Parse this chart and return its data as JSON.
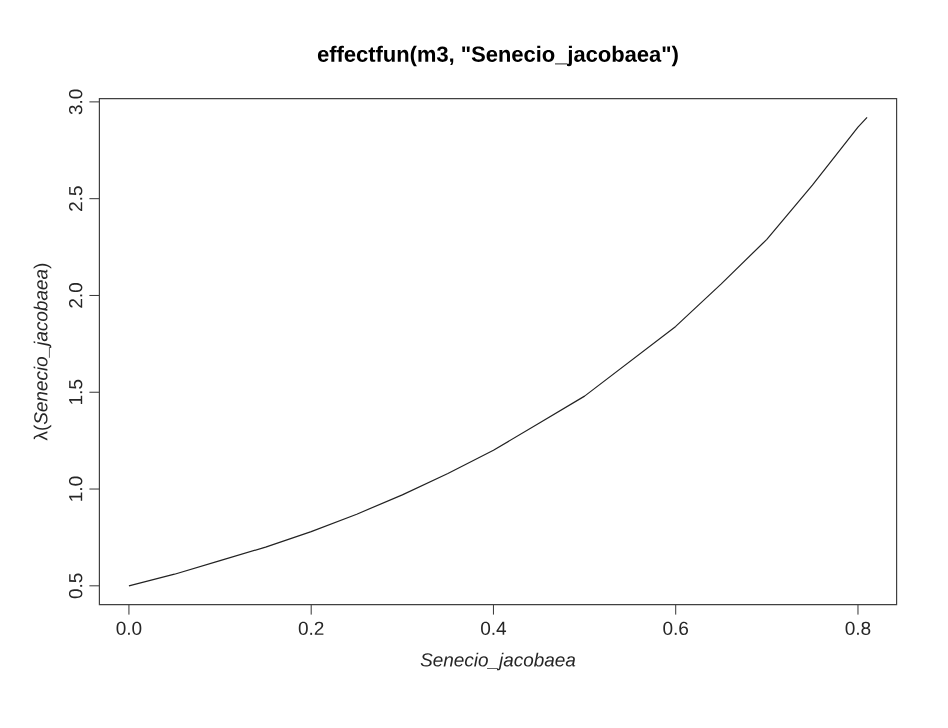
{
  "chart_data": {
    "type": "line",
    "title": "effectfun(m3, \"Senecio_jacobaea\")",
    "xlabel": "Senecio_jacobaea",
    "ylabel": "λ(*Senecio_jacobaea*)",
    "x": [
      0,
      0.05,
      0.1,
      0.15,
      0.2,
      0.25,
      0.3,
      0.35,
      0.4,
      0.45,
      0.5,
      0.55,
      0.6,
      0.65,
      0.7,
      0.75,
      0.8,
      0.81
    ],
    "series": [
      {
        "color": "#222222",
        "values": [
          0.5,
          0.56,
          0.63,
          0.7,
          0.78,
          0.87,
          0.97,
          1.08,
          1.2,
          1.34,
          1.48,
          1.66,
          1.84,
          2.06,
          2.29,
          2.57,
          2.87,
          2.92
        ]
      }
    ],
    "xlim": [
      -0.0324,
      0.8424
    ],
    "ylim": [
      0.403,
      3.017
    ],
    "xticks": [
      {
        "value": 0,
        "label": "0.0"
      },
      0.2,
      0.4,
      0.6,
      0.8
    ],
    "yticks": [
      0.5,
      {
        "value": 1,
        "label": "1.0"
      },
      1.5,
      {
        "value": 2,
        "label": "2.0"
      },
      2.5,
      {
        "value": 3,
        "label": "3.0"
      }
    ]
  }
}
